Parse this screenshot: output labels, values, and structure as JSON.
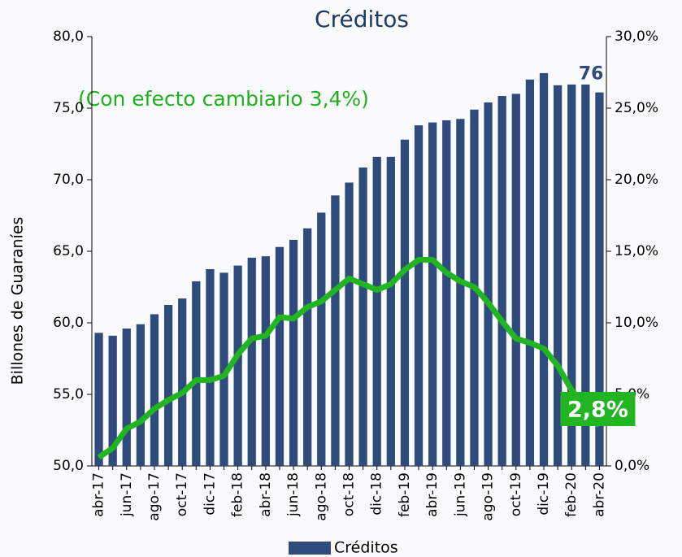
{
  "chart_data": {
    "type": "bar_line",
    "title": "Créditos",
    "ylabel": "Billones de Guaraníes",
    "annotations": [
      {
        "text": "(Con efecto cambiario 3,4%)"
      }
    ],
    "categories": [
      "abr-17",
      null,
      "jun-17",
      null,
      "ago-17",
      null,
      "oct-17",
      null,
      "dic-17",
      null,
      "feb-18",
      null,
      "abr-18",
      null,
      "jun-18",
      null,
      "ago-18",
      null,
      "oct-18",
      null,
      "dic-18",
      null,
      "feb-19",
      null,
      "abr-19",
      null,
      "jun-19",
      null,
      "ago-19",
      null,
      "oct-19",
      null,
      "dic-19",
      null,
      "feb-20",
      null,
      "abr-20"
    ],
    "series": [
      {
        "name": "Créditos",
        "type": "bar",
        "color": "#2f4b7c",
        "values": [
          59.3,
          59.1,
          59.6,
          59.9,
          60.6,
          61.25,
          61.7,
          62.9,
          63.75,
          63.5,
          64.0,
          64.55,
          64.65,
          65.3,
          65.8,
          66.6,
          67.7,
          68.9,
          69.8,
          70.85,
          71.6,
          71.6,
          72.8,
          73.8,
          74.0,
          74.15,
          74.25,
          74.9,
          75.4,
          75.85,
          76.0,
          77.0,
          77.45,
          76.6,
          76.65,
          76.65,
          76.1
        ],
        "value_labels": [
          null,
          null,
          null,
          null,
          null,
          null,
          null,
          null,
          null,
          null,
          null,
          null,
          null,
          null,
          null,
          null,
          null,
          null,
          null,
          null,
          null,
          null,
          null,
          null,
          null,
          null,
          null,
          null,
          null,
          null,
          null,
          null,
          null,
          null,
          null,
          null,
          "76"
        ]
      },
      {
        "type": "line",
        "axis": "y2",
        "color": "#22b522",
        "values": [
          0.6,
          1.25,
          2.6,
          3.1,
          4.0,
          4.6,
          5.1,
          6.0,
          6.0,
          6.3,
          7.8,
          8.9,
          9.1,
          10.4,
          10.3,
          11.1,
          11.5,
          12.3,
          13.1,
          12.7,
          12.3,
          12.7,
          13.7,
          14.4,
          14.4,
          13.5,
          12.9,
          12.5,
          11.4,
          10.1,
          8.9,
          8.6,
          8.2,
          7.0,
          5.3,
          4.1,
          2.8
        ],
        "value_labels": [
          null,
          null,
          null,
          null,
          null,
          null,
          null,
          null,
          null,
          null,
          null,
          null,
          null,
          null,
          null,
          null,
          null,
          null,
          null,
          null,
          null,
          null,
          null,
          null,
          null,
          null,
          null,
          null,
          null,
          null,
          null,
          null,
          null,
          null,
          null,
          null,
          "2,8%"
        ]
      }
    ],
    "ylim": [
      50,
      80
    ],
    "yticks": [
      {
        "value": 50,
        "label": "50,0"
      },
      {
        "value": 55,
        "label": "55,0"
      },
      {
        "value": 60,
        "label": "60,0"
      },
      {
        "value": 65,
        "label": "65,0"
      },
      {
        "value": 70,
        "label": "70,0"
      },
      {
        "value": 75,
        "label": "75,0"
      },
      {
        "value": 80,
        "label": "80,0"
      }
    ],
    "y2lim": [
      0,
      30
    ],
    "y2ticks": [
      {
        "value": 0,
        "label": "0,0%"
      },
      {
        "value": 5,
        "label": "5,0%"
      },
      {
        "value": 10,
        "label": "10,0%"
      },
      {
        "value": 15,
        "label": "15,0%"
      },
      {
        "value": 20,
        "label": "20,0%"
      },
      {
        "value": 25,
        "label": "25,0%"
      },
      {
        "value": 30,
        "label": "30,0%"
      }
    ],
    "legend": "bottom"
  }
}
